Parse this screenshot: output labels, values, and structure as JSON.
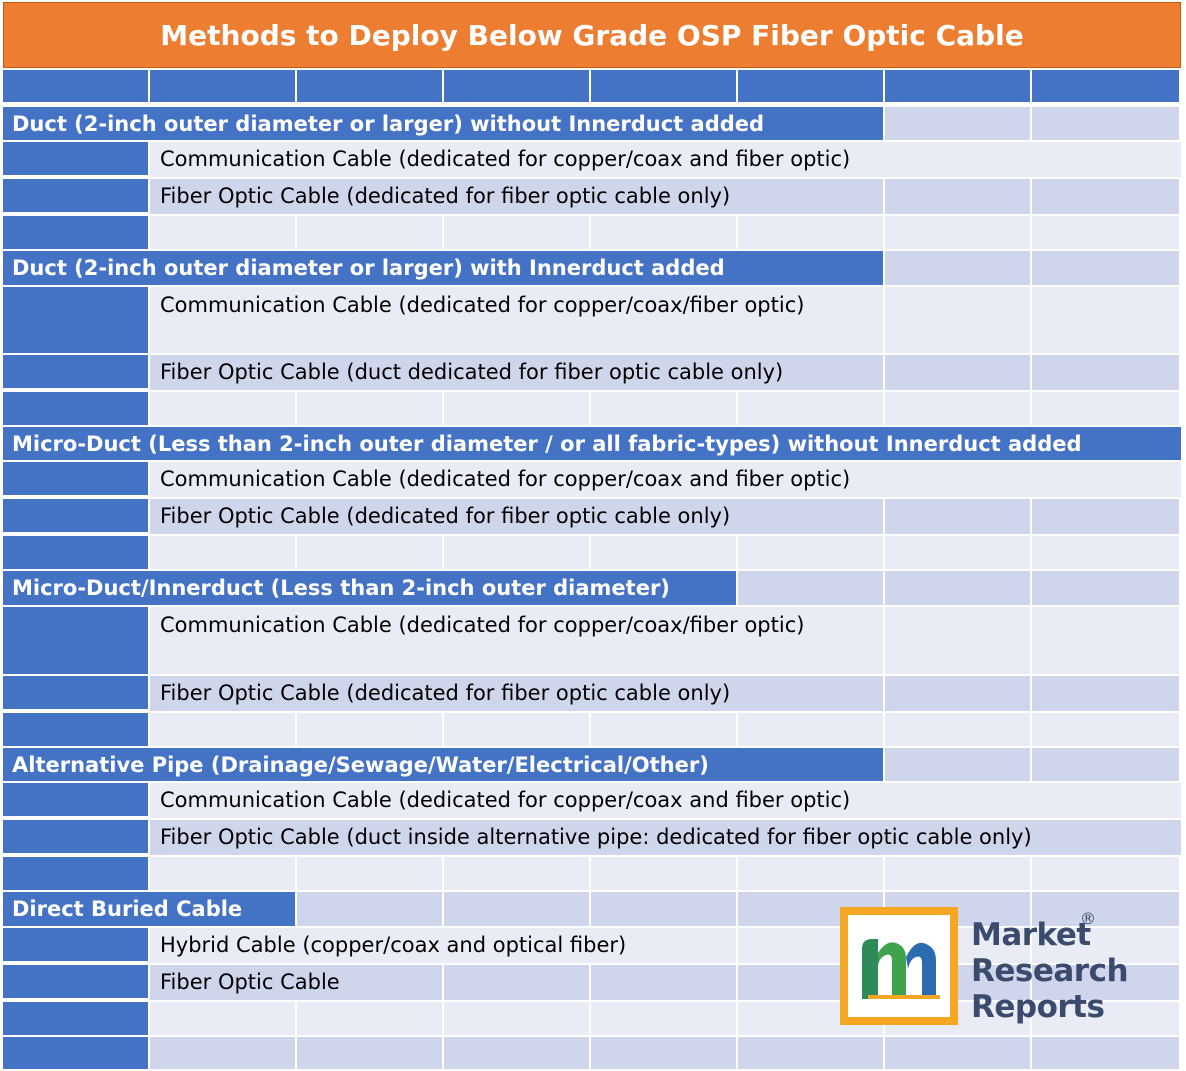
{
  "title": "Methods to Deploy Below Grade OSP Fiber Optic Cable",
  "sections": [
    {
      "header": "Duct (2-inch outer diameter or larger) without Innerduct added",
      "items": [
        "Communication Cable (dedicated for copper/coax and fiber optic)",
        "Fiber Optic Cable (dedicated for fiber optic cable only)"
      ]
    },
    {
      "header": "Duct (2-inch outer diameter or larger) with Innerduct added",
      "items": [
        "Communication Cable (dedicated for copper/coax/fiber optic)",
        "Fiber Optic Cable (duct dedicated for fiber optic cable only)"
      ]
    },
    {
      "header": "Micro-Duct (Less than 2-inch outer diameter / or all fabric-types) without Innerduct added",
      "items": [
        "Communication Cable (dedicated for copper/coax and fiber optic)",
        "Fiber Optic Cable (dedicated for fiber optic cable only)"
      ]
    },
    {
      "header": "Micro-Duct/Innerduct (Less than 2-inch outer diameter)",
      "items": [
        "Communication Cable (dedicated for copper/coax/fiber optic)",
        "Fiber Optic Cable (dedicated for fiber optic cable only)"
      ]
    },
    {
      "header": "Alternative Pipe (Drainage/Sewage/Water/Electrical/Other)",
      "items": [
        "Communication Cable (dedicated for copper/coax and fiber optic)",
        "Fiber Optic Cable (duct inside alternative pipe: dedicated for fiber optic cable only)"
      ]
    },
    {
      "header": "Direct Buried Cable",
      "items": [
        "Hybrid Cable (copper/coax and optical fiber)",
        "Fiber Optic Cable"
      ]
    }
  ],
  "logo": {
    "line1": "Market",
    "line2": "Research",
    "line3": "Reports",
    "registered": "®",
    "mark": "m"
  },
  "colors": {
    "title_bg": "#ED7D31",
    "table_blue": "#4472C4",
    "band_dark": "#CFD5EA",
    "band_light": "#E9EBF5",
    "logo_orange": "#F5A623",
    "logo_text": "#3B4B6E"
  }
}
